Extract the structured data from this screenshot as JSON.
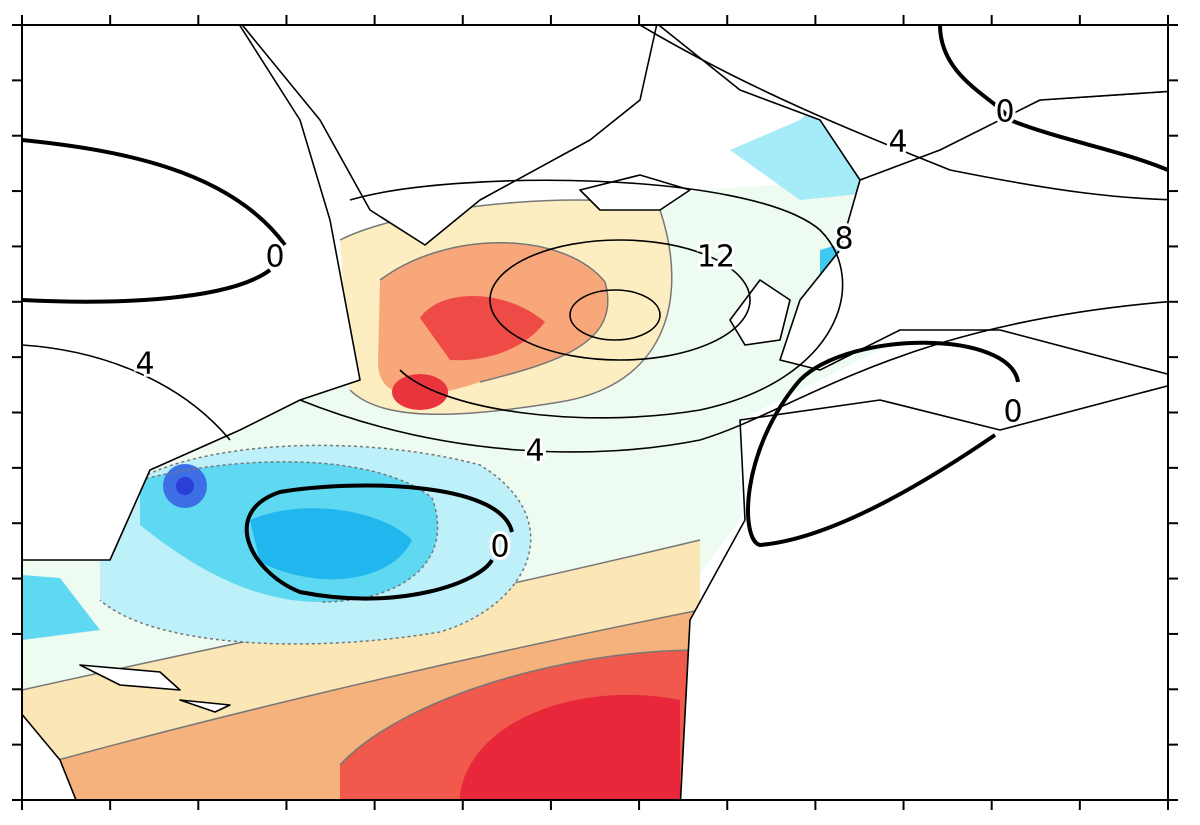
{
  "contour_labels": [
    0,
    4,
    4,
    0,
    12,
    8,
    4,
    0,
    0
  ]
}
